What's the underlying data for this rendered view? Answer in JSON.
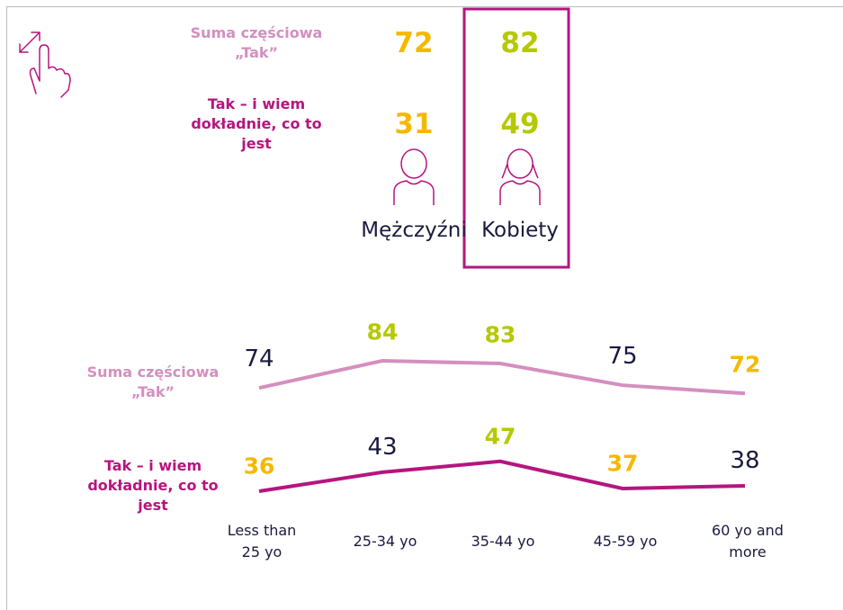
{
  "chart_data": [
    {
      "type": "pictogram",
      "categories": [
        "Mężczyźni",
        "Kobiety"
      ],
      "category_colors": [
        "#f5b800",
        "#b5c900"
      ],
      "highlight": "Kobiety",
      "highlight_color": "#b5157f",
      "series": [
        {
          "name": "Suma częściowa „Tak”",
          "color": "#d48fbf",
          "values": [
            72,
            82
          ]
        },
        {
          "name": "Tak – i wiem dokładnie, co to jest",
          "color": "#b5157f",
          "values": [
            31,
            49
          ]
        }
      ]
    },
    {
      "type": "line",
      "categories": [
        "Less than 25 yo",
        "25-34 yo",
        "35-44 yo",
        "45-59 yo",
        "60 yo and more"
      ],
      "series": [
        {
          "name": "Suma częściowa „Tak”",
          "color": "#d48fbf",
          "values": [
            74,
            84,
            83,
            75,
            72
          ],
          "label_colors": [
            "#1a1a40",
            "#b5c900",
            "#b5c900",
            "#1a1a40",
            "#f5b800"
          ]
        },
        {
          "name": "Tak – i wiem dokładnie, co to jest",
          "color": "#b5157f",
          "values": [
            36,
            43,
            47,
            37,
            38
          ],
          "label_colors": [
            "#f5b800",
            "#1a1a40",
            "#b5c900",
            "#f5b800",
            "#1a1a40"
          ]
        }
      ]
    }
  ]
}
